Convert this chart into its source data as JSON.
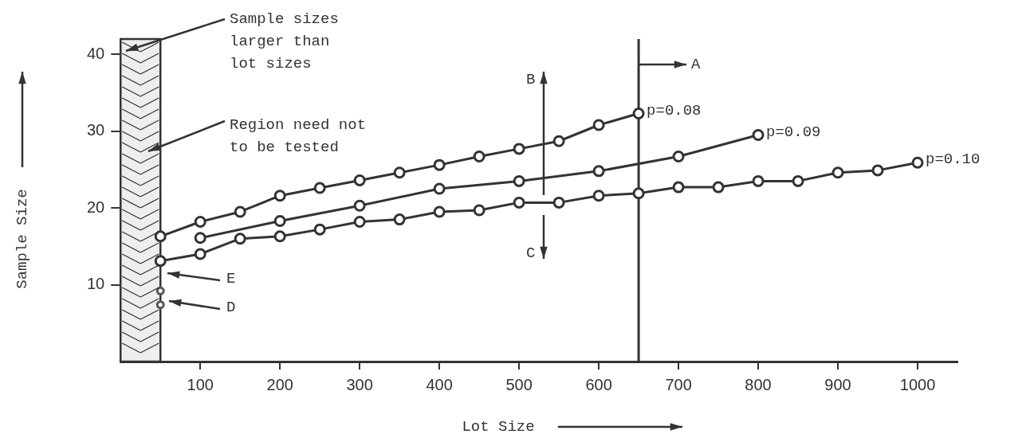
{
  "chart_data": {
    "type": "line",
    "xlabel": "Lot Size",
    "ylabel": "Sample Size",
    "xlim": [
      0,
      1050
    ],
    "xticks": [
      100,
      200,
      300,
      400,
      500,
      600,
      700,
      800,
      900,
      1000
    ],
    "ylim": [
      0,
      42
    ],
    "yticks": [
      10,
      20,
      30,
      40
    ],
    "grid": false,
    "legend": false,
    "marker": "circle",
    "line_style": "solid",
    "series": [
      {
        "name": "p=0.08",
        "color": "#333333",
        "x": [
          50,
          100,
          150,
          200,
          250,
          300,
          350,
          400,
          450,
          500,
          550,
          600,
          650
        ],
        "values": [
          16.3,
          18.2,
          19.5,
          21.6,
          22.6,
          23.6,
          24.6,
          25.6,
          26.7,
          27.7,
          28.7,
          30.8,
          32.3
        ]
      },
      {
        "name": "p=0.09",
        "color": "#333333",
        "x": [
          100,
          200,
          300,
          400,
          500,
          600,
          700,
          800
        ],
        "values": [
          16.1,
          18.3,
          20.3,
          22.5,
          23.5,
          24.8,
          26.7,
          29.5
        ]
      },
      {
        "name": "p=0.10",
        "color": "#333333",
        "x": [
          50,
          100,
          150,
          200,
          250,
          300,
          350,
          400,
          450,
          500,
          550,
          600,
          650,
          700,
          750,
          800,
          850,
          900,
          950,
          1000
        ],
        "values": [
          13.1,
          14.0,
          16.0,
          16.3,
          17.2,
          18.2,
          18.5,
          19.5,
          19.7,
          20.7,
          20.7,
          21.6,
          21.9,
          22.7,
          22.7,
          23.5,
          23.5,
          24.6,
          24.9,
          25.9
        ]
      },
      {
        "type": "scatter",
        "color": "#555555",
        "x": [
          50,
          50
        ],
        "values": [
          9.2,
          7.4
        ]
      }
    ],
    "ref_lines": [
      {
        "axis": "x",
        "value": 650,
        "label": "A"
      }
    ],
    "bands": [
      {
        "axis": "x",
        "from": 0,
        "to": 50,
        "color": "#eeeeee"
      }
    ],
    "annotations": [
      "Sample sizes larger than lot sizes",
      "Region need not to be tested",
      "E",
      "D",
      "B",
      "C"
    ]
  }
}
